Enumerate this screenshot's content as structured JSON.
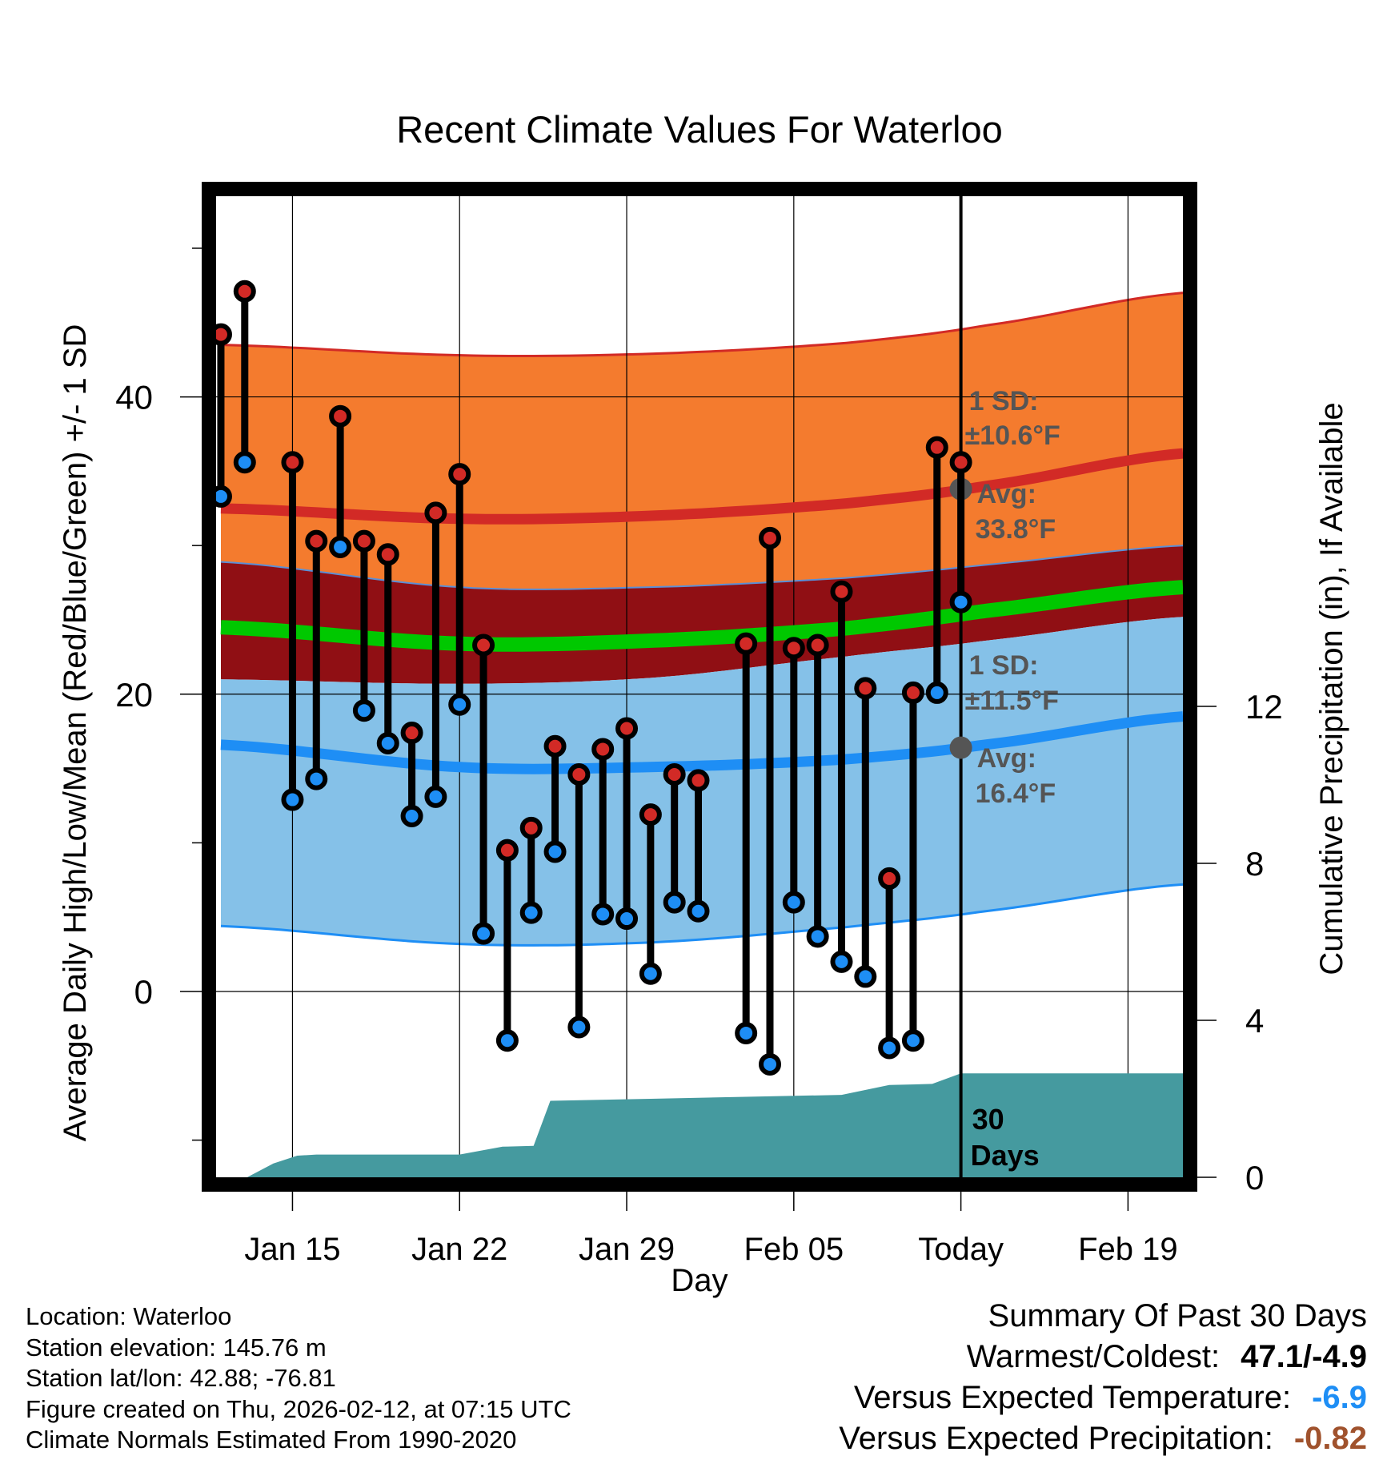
{
  "chart_data": {
    "type": "line",
    "title": "Recent Climate Values For Waterloo",
    "xlabel": "Day",
    "ylabel": "Average Daily High/Low/Mean (Red/Blue/Green) +/- 1 SD",
    "y2label": "Cumulative Precipitation (in), If Available",
    "x_tick_labels": [
      "Jan 15",
      "Jan 22",
      "Jan 29",
      "Feb 05",
      "Today",
      "Feb 19"
    ],
    "x_tick_days": [
      15,
      22,
      29,
      36,
      43,
      50
    ],
    "x_range": [
      11.8,
      52.3
    ],
    "y_ticks": [
      0,
      20,
      40
    ],
    "y_range": [
      -12.5,
      53.5
    ],
    "y2_ticks": [
      0,
      4,
      8,
      12
    ],
    "y2_range": [
      0,
      25
    ],
    "today_day": 43,
    "normal_high": {
      "days": [
        12,
        22,
        30,
        38,
        44,
        52.3
      ],
      "mean": [
        32.5,
        31.8,
        32.0,
        32.8,
        34.0,
        36.2
      ],
      "upper": [
        43.5,
        42.8,
        42.9,
        43.6,
        44.8,
        47.0
      ],
      "lower": [
        28.9,
        27.2,
        27.2,
        27.8,
        28.7,
        30.0
      ]
    },
    "normal_low": {
      "days": [
        12,
        22,
        30,
        38,
        44,
        52.3
      ],
      "mean": [
        16.6,
        15.1,
        15.1,
        15.6,
        16.6,
        18.5
      ],
      "upper": [
        21.0,
        20.7,
        21.1,
        22.5,
        23.6,
        25.2
      ],
      "lower": [
        4.4,
        3.2,
        3.3,
        4.3,
        5.4,
        7.2
      ]
    },
    "normal_mean": {
      "days": [
        12,
        22,
        30,
        38,
        44,
        52.3
      ],
      "values": [
        24.5,
        23.4,
        23.6,
        24.4,
        25.6,
        27.2
      ]
    },
    "daily": [
      {
        "day": 12,
        "high": 44.2,
        "low": 33.3
      },
      {
        "day": 13,
        "high": 47.1,
        "low": 35.6
      },
      {
        "day": 15,
        "high": 35.6,
        "low": 12.9
      },
      {
        "day": 16,
        "high": 30.3,
        "low": 14.3
      },
      {
        "day": 17,
        "high": 38.7,
        "low": 29.9
      },
      {
        "day": 18,
        "high": 30.3,
        "low": 18.9
      },
      {
        "day": 19,
        "high": 29.4,
        "low": 16.7
      },
      {
        "day": 20,
        "high": 17.4,
        "low": 11.8
      },
      {
        "day": 21,
        "high": 32.2,
        "low": 13.1
      },
      {
        "day": 22,
        "high": 34.8,
        "low": 19.3
      },
      {
        "day": 23,
        "high": 23.3,
        "low": 3.9
      },
      {
        "day": 24,
        "high": 9.5,
        "low": -3.3
      },
      {
        "day": 25,
        "high": 11.0,
        "low": 5.3
      },
      {
        "day": 26,
        "high": 16.5,
        "low": 9.4
      },
      {
        "day": 27,
        "high": 14.6,
        "low": -2.4
      },
      {
        "day": 28,
        "high": 16.3,
        "low": 5.2
      },
      {
        "day": 29,
        "high": 17.7,
        "low": 4.9
      },
      {
        "day": 30,
        "high": 11.9,
        "low": 1.2
      },
      {
        "day": 31,
        "high": 14.6,
        "low": 6.0
      },
      {
        "day": 32,
        "high": 14.2,
        "low": 5.4
      },
      {
        "day": 34,
        "high": 23.4,
        "low": -2.8
      },
      {
        "day": 35,
        "high": 30.5,
        "low": -4.9
      },
      {
        "day": 36,
        "high": 23.1,
        "low": 6.0
      },
      {
        "day": 37,
        "high": 23.3,
        "low": 3.7
      },
      {
        "day": 38,
        "high": 26.9,
        "low": 2.0
      },
      {
        "day": 39,
        "high": 20.4,
        "low": 1.0
      },
      {
        "day": 40,
        "high": 7.6,
        "low": -3.8
      },
      {
        "day": 41,
        "high": 20.1,
        "low": -3.3
      },
      {
        "day": 42,
        "high": 36.6,
        "low": 20.1
      },
      {
        "day": 43,
        "high": 35.6,
        "low": 26.2
      }
    ],
    "precip": {
      "days": [
        11.8,
        13.1,
        14.2,
        15.2,
        16.0,
        22.0,
        23.8,
        25.1,
        25.8,
        30.0,
        38.0,
        40.0,
        41.8,
        43.0,
        52.3
      ],
      "values": [
        0.0,
        0.0,
        0.35,
        0.55,
        0.58,
        0.58,
        0.78,
        0.8,
        1.95,
        2.0,
        2.1,
        2.35,
        2.38,
        2.65,
        2.65
      ]
    },
    "annotations": {
      "high_sd_label": "1 SD:",
      "high_sd_value": "±10.6°F",
      "high_avg_label": "Avg:",
      "high_avg_value": "33.8°F",
      "high_avg": 33.8,
      "low_sd_label": "1 SD:",
      "low_sd_value": "±11.5°F",
      "low_avg_label": "Avg:",
      "low_avg_value": "16.4°F",
      "low_avg": 16.4,
      "days_count": "30",
      "days_label": "Days"
    },
    "colors": {
      "high_band": "#f47b2e",
      "high_mean_line": "#d22a26",
      "mean_band": "#900f14",
      "mean_line": "#00c800",
      "low_band": "#85c1e8",
      "low_mean_line": "#1e8ef5",
      "precip": "#459a9f",
      "high_marker": "#d22a26",
      "low_marker": "#1e8ef5",
      "annotation": "#555555"
    }
  },
  "footer": {
    "location": "Location: Waterloo",
    "elevation": "Station elevation: 145.76 m",
    "latlon": "Station lat/lon: 42.88; -76.81",
    "created": "Figure created on Thu, 2026-02-12, at 07:15 UTC",
    "normals": "Climate Normals Estimated From 1990-2020"
  },
  "summary": {
    "title": "Summary Of Past 30 Days",
    "warmest_label": "Warmest/Coldest:",
    "warmest_value": "47.1/-4.9",
    "temp_label": "Versus Expected Temperature:",
    "temp_value": "-6.9",
    "temp_color": "#1e8ef5",
    "precip_label": "Versus Expected Precipitation:",
    "precip_value": "-0.82",
    "precip_color": "#a0522d"
  }
}
